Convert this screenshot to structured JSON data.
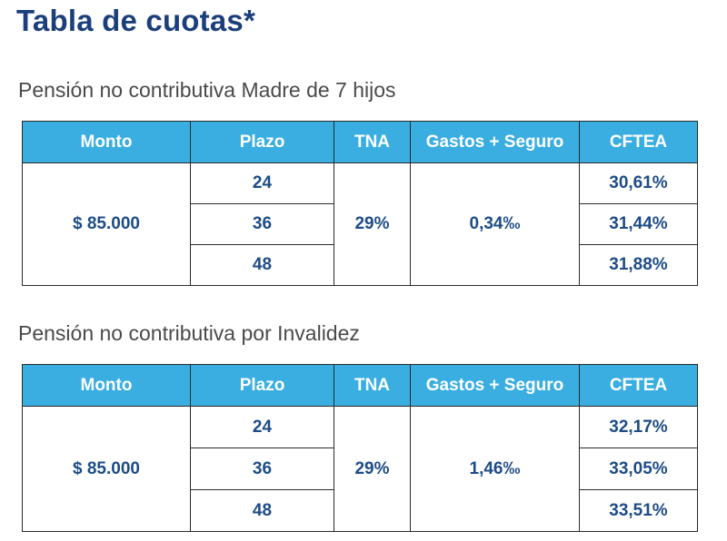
{
  "page": {
    "title": "Tabla de cuotas*"
  },
  "columns": [
    "Monto",
    "Plazo",
    "TNA",
    "Gastos + Seguro",
    "CFTEA"
  ],
  "sections": [
    {
      "title": "Pensión no contributiva Madre de 7 hijos",
      "monto": "$ 85.000",
      "tna": "29%",
      "gastos_seguro": "0,34‰",
      "rows": [
        {
          "plazo": "24",
          "cftea": "30,61%"
        },
        {
          "plazo": "36",
          "cftea": "31,44%"
        },
        {
          "plazo": "48",
          "cftea": "31,88%"
        }
      ]
    },
    {
      "title": "Pensión no contributiva por Invalidez",
      "monto": "$ 85.000",
      "tna": "29%",
      "gastos_seguro": "1,46‰",
      "rows": [
        {
          "plazo": "24",
          "cftea": "32,17%"
        },
        {
          "plazo": "36",
          "cftea": "33,05%"
        },
        {
          "plazo": "48",
          "cftea": "33,51%"
        }
      ]
    }
  ]
}
